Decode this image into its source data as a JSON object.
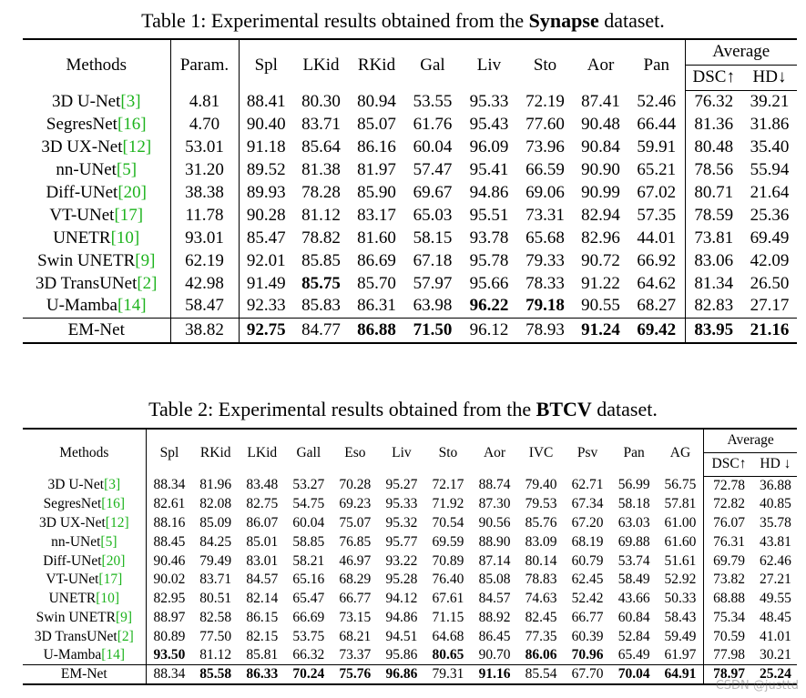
{
  "table1": {
    "caption_prefix": "Table 1: Experimental results obtained from the ",
    "caption_bold": "Synapse",
    "caption_suffix": " dataset.",
    "header": {
      "methods": "Methods",
      "columns": [
        "Param.",
        "Spl",
        "LKid",
        "RKid",
        "Gal",
        "Liv",
        "Sto",
        "Aor",
        "Pan"
      ],
      "average": "Average",
      "average_columns": [
        "DSC↑",
        "HD↓"
      ]
    },
    "rows": [
      {
        "method": "3D U-Net",
        "ref": "[3]",
        "values": [
          "4.81",
          "88.41",
          "80.30",
          "80.94",
          "53.55",
          "95.33",
          "72.19",
          "87.41",
          "52.46",
          "76.32",
          "39.21"
        ]
      },
      {
        "method": "SegresNet",
        "ref": "[16]",
        "values": [
          "4.70",
          "90.40",
          "83.71",
          "85.07",
          "61.76",
          "95.43",
          "77.60",
          "90.48",
          "66.44",
          "81.36",
          "31.86"
        ]
      },
      {
        "method": "3D UX-Net",
        "ref": "[12]",
        "values": [
          "53.01",
          "91.18",
          "85.64",
          "86.16",
          "60.04",
          "96.09",
          "73.96",
          "90.84",
          "59.91",
          "80.48",
          "35.40"
        ]
      },
      {
        "method": "nn-UNet",
        "ref": "[5]",
        "values": [
          "31.20",
          "89.52",
          "81.38",
          "81.97",
          "57.47",
          "95.41",
          "66.59",
          "90.90",
          "65.21",
          "78.56",
          "55.94"
        ]
      },
      {
        "method": "Diff-UNet",
        "ref": "[20]",
        "values": [
          "38.38",
          "89.93",
          "78.28",
          "85.90",
          "69.67",
          "94.86",
          "69.06",
          "90.99",
          "67.02",
          "80.71",
          "21.64"
        ]
      },
      {
        "method": "VT-UNet",
        "ref": "[17]",
        "values": [
          "11.78",
          "90.28",
          "81.12",
          "83.17",
          "65.03",
          "95.51",
          "73.31",
          "82.94",
          "57.35",
          "78.59",
          "25.36"
        ]
      },
      {
        "method": "UNETR",
        "ref": "[10]",
        "values": [
          "93.01",
          "85.47",
          "78.82",
          "81.60",
          "58.15",
          "93.78",
          "65.68",
          "82.96",
          "44.01",
          "73.81",
          "69.49"
        ]
      },
      {
        "method": "Swin UNETR",
        "ref": "[9]",
        "values": [
          "62.19",
          "92.01",
          "85.85",
          "86.69",
          "67.18",
          "95.78",
          "79.33",
          "90.72",
          "66.92",
          "83.06",
          "42.09"
        ]
      },
      {
        "method": "3D TransUNet",
        "ref": "[2]",
        "values": [
          "42.98",
          "91.49",
          "85.75",
          "85.70",
          "57.97",
          "95.66",
          "78.33",
          "91.22",
          "64.62",
          "81.34",
          "26.50"
        ]
      },
      {
        "method": "U-Mamba",
        "ref": "[14]",
        "values": [
          "58.47",
          "92.33",
          "85.83",
          "86.31",
          "63.98",
          "96.22",
          "79.18",
          "90.55",
          "68.27",
          "82.83",
          "27.17"
        ]
      },
      {
        "method": "EM-Net",
        "ref": null,
        "values": [
          "38.82",
          "92.75",
          "84.77",
          "86.88",
          "71.50",
          "96.12",
          "78.93",
          "91.24",
          "69.42",
          "83.95",
          "21.16"
        ]
      }
    ],
    "bold": [
      [
        8,
        2
      ],
      [
        9,
        5
      ],
      [
        9,
        6
      ],
      [
        10,
        1
      ],
      [
        10,
        3
      ],
      [
        10,
        4
      ],
      [
        10,
        7
      ],
      [
        10,
        8
      ],
      [
        10,
        9
      ],
      [
        10,
        10
      ]
    ]
  },
  "table2": {
    "caption_prefix": "Table 2: Experimental results obtained from the ",
    "caption_bold": "BTCV",
    "caption_suffix": " dataset.",
    "header": {
      "methods": "Methods",
      "columns": [
        "Spl",
        "RKid",
        "LKid",
        "Gall",
        "Eso",
        "Liv",
        "Sto",
        "Aor",
        "IVC",
        "Psv",
        "Pan",
        "AG"
      ],
      "average": "Average",
      "average_columns": [
        "DSC↑",
        "HD ↓"
      ]
    },
    "rows": [
      {
        "method": "3D U-Net",
        "ref": "[3]",
        "values": [
          "88.34",
          "81.96",
          "83.48",
          "53.27",
          "70.28",
          "95.27",
          "72.17",
          "88.74",
          "79.40",
          "62.71",
          "56.99",
          "56.75",
          "72.78",
          "36.88"
        ]
      },
      {
        "method": "SegresNet",
        "ref": "[16]",
        "values": [
          "82.61",
          "82.08",
          "82.75",
          "54.75",
          "69.23",
          "95.33",
          "71.92",
          "87.30",
          "79.53",
          "67.34",
          "58.18",
          "57.81",
          "72.82",
          "40.85"
        ]
      },
      {
        "method": "3D UX-Net",
        "ref": "[12]",
        "values": [
          "88.16",
          "85.09",
          "86.07",
          "60.04",
          "75.07",
          "95.32",
          "70.54",
          "90.56",
          "85.76",
          "67.20",
          "63.03",
          "61.00",
          "76.07",
          "35.78"
        ]
      },
      {
        "method": "nn-UNet",
        "ref": "[5]",
        "values": [
          "88.45",
          "84.25",
          "85.01",
          "58.85",
          "76.85",
          "95.77",
          "69.59",
          "88.90",
          "83.09",
          "68.19",
          "69.88",
          "61.60",
          "76.31",
          "43.81"
        ]
      },
      {
        "method": "Diff-UNet",
        "ref": "[20]",
        "values": [
          "90.46",
          "79.49",
          "83.01",
          "58.21",
          "46.97",
          "93.22",
          "70.89",
          "87.14",
          "80.14",
          "60.79",
          "53.74",
          "51.61",
          "69.79",
          "62.46"
        ]
      },
      {
        "method": "VT-UNet",
        "ref": "[17]",
        "values": [
          "90.02",
          "83.71",
          "84.57",
          "65.16",
          "68.29",
          "95.28",
          "76.40",
          "85.08",
          "78.83",
          "62.45",
          "58.49",
          "52.92",
          "73.82",
          "27.21"
        ]
      },
      {
        "method": "UNETR",
        "ref": "[10]",
        "values": [
          "82.95",
          "80.51",
          "82.14",
          "65.47",
          "66.77",
          "94.12",
          "67.61",
          "84.57",
          "74.63",
          "52.42",
          "43.66",
          "50.33",
          "68.88",
          "49.55"
        ]
      },
      {
        "method": "Swin UNETR",
        "ref": "[9]",
        "values": [
          "88.97",
          "82.58",
          "86.15",
          "66.69",
          "73.15",
          "94.86",
          "71.15",
          "88.92",
          "82.45",
          "66.77",
          "60.84",
          "58.43",
          "75.34",
          "48.45"
        ]
      },
      {
        "method": "3D TransUNet",
        "ref": "[2]",
        "values": [
          "80.89",
          "77.50",
          "82.15",
          "53.75",
          "68.21",
          "94.51",
          "64.68",
          "86.45",
          "77.35",
          "60.39",
          "52.84",
          "59.49",
          "70.59",
          "41.01"
        ]
      },
      {
        "method": "U-Mamba",
        "ref": "[14]",
        "values": [
          "93.50",
          "81.12",
          "85.81",
          "66.32",
          "73.37",
          "95.86",
          "80.65",
          "90.70",
          "86.06",
          "70.96",
          "65.49",
          "61.97",
          "77.98",
          "30.21"
        ]
      },
      {
        "method": "EM-Net",
        "ref": null,
        "values": [
          "88.34",
          "85.58",
          "86.33",
          "70.24",
          "75.76",
          "96.86",
          "79.31",
          "91.16",
          "85.54",
          "67.70",
          "70.04",
          "64.91",
          "78.97",
          "25.24"
        ]
      }
    ],
    "bold": [
      [
        9,
        0
      ],
      [
        9,
        6
      ],
      [
        9,
        8
      ],
      [
        9,
        9
      ],
      [
        10,
        1
      ],
      [
        10,
        2
      ],
      [
        10,
        3
      ],
      [
        10,
        4
      ],
      [
        10,
        5
      ],
      [
        10,
        7
      ],
      [
        10,
        10
      ],
      [
        10,
        11
      ],
      [
        10,
        12
      ],
      [
        10,
        13
      ]
    ]
  },
  "watermark": "CSDN @justtd"
}
